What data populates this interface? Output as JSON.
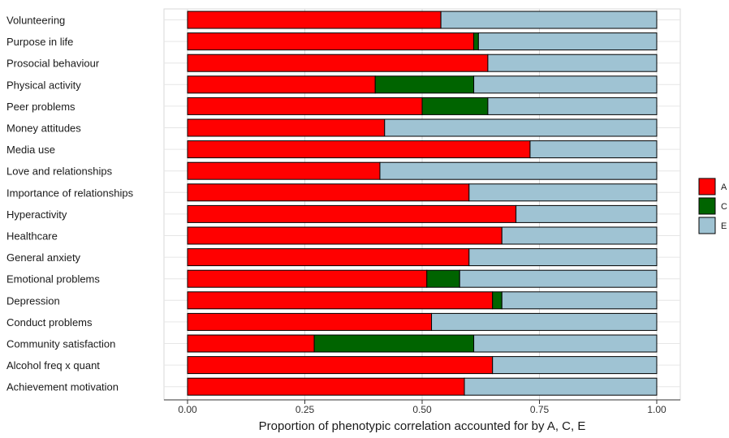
{
  "chart_data": {
    "type": "bar",
    "orientation": "horizontal",
    "stacked": true,
    "title": "",
    "xlabel": "Proportion of phenotypic correlation accounted for by A, C, E",
    "ylabel": "",
    "xlim": [
      0,
      1
    ],
    "x_ticks": [
      "0.00",
      "0.25",
      "0.50",
      "0.75",
      "1.00"
    ],
    "x_tick_values": [
      0,
      0.25,
      0.5,
      0.75,
      1
    ],
    "grid": true,
    "legend_position": "right",
    "categories": [
      "Volunteering",
      "Purpose in life",
      "Prosocial behaviour",
      "Physical activity",
      "Peer problems",
      "Money attitudes",
      "Media use",
      "Love and relationships",
      "Importance of relationships",
      "Hyperactivity",
      "Healthcare",
      "General anxiety",
      "Emotional problems",
      "Depression",
      "Conduct problems",
      "Community satisfaction",
      "Alcohol freq x quant",
      "Achievement motivation"
    ],
    "series": [
      {
        "name": "A",
        "color": "#ff0000",
        "values": [
          0.54,
          0.61,
          0.64,
          0.4,
          0.5,
          0.42,
          0.73,
          0.41,
          0.6,
          0.7,
          0.67,
          0.6,
          0.51,
          0.65,
          0.52,
          0.27,
          0.65,
          0.59
        ]
      },
      {
        "name": "C",
        "color": "#006400",
        "values": [
          0.0,
          0.01,
          0.0,
          0.21,
          0.14,
          0.0,
          0.0,
          0.0,
          0.0,
          0.0,
          0.0,
          0.0,
          0.07,
          0.02,
          0.0,
          0.34,
          0.0,
          0.0
        ]
      },
      {
        "name": "E",
        "color": "#9fc3d3",
        "values": [
          0.46,
          0.38,
          0.36,
          0.39,
          0.36,
          0.58,
          0.27,
          0.59,
          0.4,
          0.3,
          0.33,
          0.4,
          0.42,
          0.33,
          0.48,
          0.39,
          0.35,
          0.41
        ]
      }
    ]
  }
}
